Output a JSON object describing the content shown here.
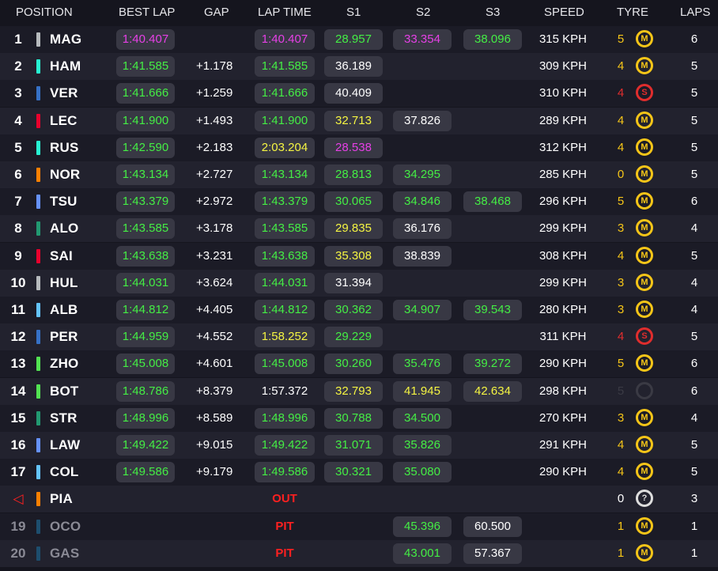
{
  "colors": {
    "purple": "#e640e6",
    "green": "#44ee44",
    "yellow": "#f5f542",
    "white": "#ffffff",
    "red": "#ff2020",
    "tyre_medium": "#f5c518",
    "tyre_soft": "#e02d2d",
    "tyre_unknown": "#dddddd"
  },
  "header": {
    "position": "POSITION",
    "best_lap": "BEST LAP",
    "gap": "GAP",
    "lap_time": "LAP TIME",
    "s1": "S1",
    "s2": "S2",
    "s3": "S3",
    "speed": "SPEED",
    "tyre": "TYRE",
    "laps": "LAPS"
  },
  "rows": [
    {
      "pos": "1",
      "team_color": "#b6babd",
      "code": "MAG",
      "best": "1:40.407",
      "best_c": "#e640e6",
      "gap": "",
      "lap": "1:40.407",
      "lap_c": "#e640e6",
      "lap_pill": true,
      "s1": "28.957",
      "s1_c": "#44ee44",
      "s2": "33.354",
      "s2_c": "#e640e6",
      "s3": "38.096",
      "s3_c": "#44ee44",
      "speed": "315 KPH",
      "tcount": "5",
      "tcount_c": "#f5c518",
      "tyre": "M",
      "tyre_c": "#f5c518",
      "laps": "6",
      "dim": false
    },
    {
      "pos": "2",
      "team_color": "#27f4d2",
      "code": "HAM",
      "best": "1:41.585",
      "best_c": "#44ee44",
      "gap": "+1.178",
      "lap": "1:41.585",
      "lap_c": "#44ee44",
      "lap_pill": true,
      "s1": "36.189",
      "s1_c": "#ffffff",
      "s2": "",
      "s2_c": "",
      "s3": "",
      "s3_c": "",
      "speed": "309 KPH",
      "tcount": "4",
      "tcount_c": "#f5c518",
      "tyre": "M",
      "tyre_c": "#f5c518",
      "laps": "5",
      "dim": false
    },
    {
      "pos": "3",
      "team_color": "#3671c6",
      "code": "VER",
      "best": "1:41.666",
      "best_c": "#44ee44",
      "gap": "+1.259",
      "lap": "1:41.666",
      "lap_c": "#44ee44",
      "lap_pill": true,
      "s1": "40.409",
      "s1_c": "#ffffff",
      "s2": "",
      "s2_c": "",
      "s3": "",
      "s3_c": "",
      "speed": "310 KPH",
      "tcount": "4",
      "tcount_c": "#e02d2d",
      "tyre": "S",
      "tyre_c": "#e02d2d",
      "laps": "5",
      "dim": false
    },
    {
      "pos": "4",
      "team_color": "#e8002d",
      "code": "LEC",
      "best": "1:41.900",
      "best_c": "#44ee44",
      "gap": "+1.493",
      "lap": "1:41.900",
      "lap_c": "#44ee44",
      "lap_pill": true,
      "s1": "32.713",
      "s1_c": "#f5f542",
      "s2": "37.826",
      "s2_c": "#ffffff",
      "s3": "",
      "s3_c": "",
      "speed": "289 KPH",
      "tcount": "4",
      "tcount_c": "#f5c518",
      "tyre": "M",
      "tyre_c": "#f5c518",
      "laps": "5",
      "dim": false
    },
    {
      "pos": "5",
      "team_color": "#27f4d2",
      "code": "RUS",
      "best": "1:42.590",
      "best_c": "#44ee44",
      "gap": "+2.183",
      "lap": "2:03.204",
      "lap_c": "#f5f542",
      "lap_pill": true,
      "s1": "28.538",
      "s1_c": "#e640e6",
      "s2": "",
      "s2_c": "",
      "s3": "",
      "s3_c": "",
      "speed": "312 KPH",
      "tcount": "4",
      "tcount_c": "#f5c518",
      "tyre": "M",
      "tyre_c": "#f5c518",
      "laps": "5",
      "dim": false
    },
    {
      "pos": "6",
      "team_color": "#ff8000",
      "code": "NOR",
      "best": "1:43.134",
      "best_c": "#44ee44",
      "gap": "+2.727",
      "lap": "1:43.134",
      "lap_c": "#44ee44",
      "lap_pill": true,
      "s1": "28.813",
      "s1_c": "#44ee44",
      "s2": "34.295",
      "s2_c": "#44ee44",
      "s3": "",
      "s3_c": "",
      "speed": "285 KPH",
      "tcount": "0",
      "tcount_c": "#f5c518",
      "tyre": "M",
      "tyre_c": "#f5c518",
      "laps": "5",
      "dim": false
    },
    {
      "pos": "7",
      "team_color": "#6692ff",
      "code": "TSU",
      "best": "1:43.379",
      "best_c": "#44ee44",
      "gap": "+2.972",
      "lap": "1:43.379",
      "lap_c": "#44ee44",
      "lap_pill": true,
      "s1": "30.065",
      "s1_c": "#44ee44",
      "s2": "34.846",
      "s2_c": "#44ee44",
      "s3": "38.468",
      "s3_c": "#44ee44",
      "speed": "296 KPH",
      "tcount": "5",
      "tcount_c": "#f5c518",
      "tyre": "M",
      "tyre_c": "#f5c518",
      "laps": "6",
      "dim": false
    },
    {
      "pos": "8",
      "team_color": "#229971",
      "code": "ALO",
      "best": "1:43.585",
      "best_c": "#44ee44",
      "gap": "+3.178",
      "lap": "1:43.585",
      "lap_c": "#44ee44",
      "lap_pill": true,
      "s1": "29.835",
      "s1_c": "#f5f542",
      "s2": "36.176",
      "s2_c": "#ffffff",
      "s3": "",
      "s3_c": "",
      "speed": "299 KPH",
      "tcount": "3",
      "tcount_c": "#f5c518",
      "tyre": "M",
      "tyre_c": "#f5c518",
      "laps": "4",
      "dim": false
    },
    {
      "pos": "9",
      "team_color": "#e8002d",
      "code": "SAI",
      "best": "1:43.638",
      "best_c": "#44ee44",
      "gap": "+3.231",
      "lap": "1:43.638",
      "lap_c": "#44ee44",
      "lap_pill": true,
      "s1": "35.308",
      "s1_c": "#f5f542",
      "s2": "38.839",
      "s2_c": "#ffffff",
      "s3": "",
      "s3_c": "",
      "speed": "308 KPH",
      "tcount": "4",
      "tcount_c": "#f5c518",
      "tyre": "M",
      "tyre_c": "#f5c518",
      "laps": "5",
      "dim": false
    },
    {
      "pos": "10",
      "team_color": "#b6babd",
      "code": "HUL",
      "best": "1:44.031",
      "best_c": "#44ee44",
      "gap": "+3.624",
      "lap": "1:44.031",
      "lap_c": "#44ee44",
      "lap_pill": true,
      "s1": "31.394",
      "s1_c": "#ffffff",
      "s2": "",
      "s2_c": "",
      "s3": "",
      "s3_c": "",
      "speed": "299 KPH",
      "tcount": "3",
      "tcount_c": "#f5c518",
      "tyre": "M",
      "tyre_c": "#f5c518",
      "laps": "4",
      "dim": false
    },
    {
      "pos": "11",
      "team_color": "#64c4ff",
      "code": "ALB",
      "best": "1:44.812",
      "best_c": "#44ee44",
      "gap": "+4.405",
      "lap": "1:44.812",
      "lap_c": "#44ee44",
      "lap_pill": true,
      "s1": "30.362",
      "s1_c": "#44ee44",
      "s2": "34.907",
      "s2_c": "#44ee44",
      "s3": "39.543",
      "s3_c": "#44ee44",
      "speed": "280 KPH",
      "tcount": "3",
      "tcount_c": "#f5c518",
      "tyre": "M",
      "tyre_c": "#f5c518",
      "laps": "4",
      "dim": false
    },
    {
      "pos": "12",
      "team_color": "#3671c6",
      "code": "PER",
      "best": "1:44.959",
      "best_c": "#44ee44",
      "gap": "+4.552",
      "lap": "1:58.252",
      "lap_c": "#f5f542",
      "lap_pill": true,
      "s1": "29.229",
      "s1_c": "#44ee44",
      "s2": "",
      "s2_c": "",
      "s3": "",
      "s3_c": "",
      "speed": "311 KPH",
      "tcount": "4",
      "tcount_c": "#e02d2d",
      "tyre": "S",
      "tyre_c": "#e02d2d",
      "laps": "5",
      "dim": false
    },
    {
      "pos": "13",
      "team_color": "#52e252",
      "code": "ZHO",
      "best": "1:45.008",
      "best_c": "#44ee44",
      "gap": "+4.601",
      "lap": "1:45.008",
      "lap_c": "#44ee44",
      "lap_pill": true,
      "s1": "30.260",
      "s1_c": "#44ee44",
      "s2": "35.476",
      "s2_c": "#44ee44",
      "s3": "39.272",
      "s3_c": "#44ee44",
      "speed": "290 KPH",
      "tcount": "5",
      "tcount_c": "#f5c518",
      "tyre": "M",
      "tyre_c": "#f5c518",
      "laps": "6",
      "dim": false
    },
    {
      "pos": "14",
      "team_color": "#52e252",
      "code": "BOT",
      "best": "1:48.786",
      "best_c": "#44ee44",
      "gap": "+8.379",
      "lap": "1:57.372",
      "lap_c": "#ffffff",
      "lap_pill": false,
      "s1": "32.793",
      "s1_c": "#f5f542",
      "s2": "41.945",
      "s2_c": "#f5f542",
      "s3": "42.634",
      "s3_c": "#f5f542",
      "speed": "298 KPH",
      "tcount": "5",
      "tcount_c": "#3a3a44",
      "tyre": "",
      "tyre_c": "#3a3a44",
      "laps": "6",
      "dim": false
    },
    {
      "pos": "15",
      "team_color": "#229971",
      "code": "STR",
      "best": "1:48.996",
      "best_c": "#44ee44",
      "gap": "+8.589",
      "lap": "1:48.996",
      "lap_c": "#44ee44",
      "lap_pill": true,
      "s1": "30.788",
      "s1_c": "#44ee44",
      "s2": "34.500",
      "s2_c": "#44ee44",
      "s3": "",
      "s3_c": "",
      "speed": "270 KPH",
      "tcount": "3",
      "tcount_c": "#f5c518",
      "tyre": "M",
      "tyre_c": "#f5c518",
      "laps": "4",
      "dim": false
    },
    {
      "pos": "16",
      "team_color": "#6692ff",
      "code": "LAW",
      "best": "1:49.422",
      "best_c": "#44ee44",
      "gap": "+9.015",
      "lap": "1:49.422",
      "lap_c": "#44ee44",
      "lap_pill": true,
      "s1": "31.071",
      "s1_c": "#44ee44",
      "s2": "35.826",
      "s2_c": "#44ee44",
      "s3": "",
      "s3_c": "",
      "speed": "291 KPH",
      "tcount": "4",
      "tcount_c": "#f5c518",
      "tyre": "M",
      "tyre_c": "#f5c518",
      "laps": "5",
      "dim": false
    },
    {
      "pos": "17",
      "team_color": "#64c4ff",
      "code": "COL",
      "best": "1:49.586",
      "best_c": "#44ee44",
      "gap": "+9.179",
      "lap": "1:49.586",
      "lap_c": "#44ee44",
      "lap_pill": true,
      "s1": "30.321",
      "s1_c": "#44ee44",
      "s2": "35.080",
      "s2_c": "#44ee44",
      "s3": "",
      "s3_c": "",
      "speed": "290 KPH",
      "tcount": "4",
      "tcount_c": "#f5c518",
      "tyre": "M",
      "tyre_c": "#f5c518",
      "laps": "5",
      "dim": false
    },
    {
      "pos": "◁",
      "team_color": "#ff8000",
      "code": "PIA",
      "best": "",
      "best_c": "",
      "gap": "",
      "lap": "",
      "lap_c": "",
      "lap_pill": false,
      "status": "OUT",
      "s1": "",
      "s1_c": "",
      "s2": "",
      "s2_c": "",
      "s3": "",
      "s3_c": "",
      "speed": "",
      "tcount": "0",
      "tcount_c": "#ffffff",
      "tyre": "?",
      "tyre_c": "#dddddd",
      "laps": "3",
      "dim": false,
      "pos_c": "#ff2020"
    },
    {
      "pos": "19",
      "team_color": "#1d4e6e",
      "code": "OCO",
      "best": "",
      "best_c": "",
      "gap": "",
      "lap": "",
      "lap_c": "",
      "lap_pill": false,
      "status": "PIT",
      "s1": "",
      "s1_c": "",
      "s2": "45.396",
      "s2_c": "#44ee44",
      "s3": "60.500",
      "s3_c": "#ffffff",
      "speed": "",
      "tcount": "1",
      "tcount_c": "#f5c518",
      "tyre": "M",
      "tyre_c": "#f5c518",
      "laps": "1",
      "dim": true
    },
    {
      "pos": "20",
      "team_color": "#1d4e6e",
      "code": "GAS",
      "best": "",
      "best_c": "",
      "gap": "",
      "lap": "",
      "lap_c": "",
      "lap_pill": false,
      "status": "PIT",
      "s1": "",
      "s1_c": "",
      "s2": "43.001",
      "s2_c": "#44ee44",
      "s3": "57.367",
      "s3_c": "#ffffff",
      "speed": "",
      "tcount": "1",
      "tcount_c": "#f5c518",
      "tyre": "M",
      "tyre_c": "#f5c518",
      "laps": "1",
      "dim": true
    }
  ]
}
